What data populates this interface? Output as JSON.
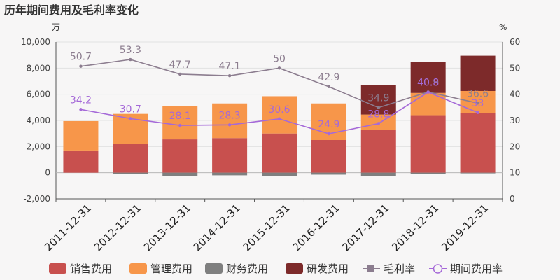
{
  "chart_data": {
    "type": "bar",
    "title": "历年期间费用及毛利率变化",
    "left_unit": "万",
    "right_unit": "%",
    "categories": [
      "2011-12-31",
      "2012-12-31",
      "2013-12-31",
      "2014-12-31",
      "2015-12-31",
      "2016-12-31",
      "2017-12-31",
      "2018-12-31",
      "2019-12-31"
    ],
    "ylim_left": [
      -2000,
      10000
    ],
    "yticks_left": [
      -2000,
      0,
      2000,
      4000,
      6000,
      8000,
      10000
    ],
    "ytick_labels_left": [
      "-2,000",
      "0",
      "2,000",
      "4,000",
      "6,000",
      "8,000",
      "10,000"
    ],
    "ylim_right": [
      0,
      60
    ],
    "yticks_right": [
      0,
      10,
      20,
      30,
      40,
      50,
      60
    ],
    "stacked_series": [
      {
        "name": "销售费用",
        "color": "#c8504e",
        "values": [
          1700,
          2200,
          2550,
          2650,
          3000,
          2500,
          3250,
          4400,
          4550
        ]
      },
      {
        "name": "管理费用",
        "color": "#f7964a",
        "values": [
          2250,
          2300,
          2550,
          2650,
          2850,
          2800,
          1200,
          1700,
          1700
        ]
      },
      {
        "name": "财务费用",
        "color": "#7f7f7f",
        "values": [
          0,
          -100,
          -250,
          -200,
          -250,
          -150,
          -250,
          -100,
          -50
        ]
      },
      {
        "name": "研发费用",
        "color": "#7d2a2a",
        "values": [
          0,
          0,
          0,
          0,
          0,
          0,
          2250,
          2400,
          2700
        ]
      }
    ],
    "line_series": [
      {
        "name": "毛利率",
        "color": "#8c7d8f",
        "axis": "right",
        "values": [
          50.7,
          53.3,
          47.7,
          47.1,
          50,
          42.9,
          34.9,
          40.9,
          36.6
        ],
        "labels": [
          "50.7",
          "53.3",
          "47.7",
          "47.1",
          "50",
          "42.9",
          "34.9",
          "40.9",
          "36.6"
        ]
      },
      {
        "name": "期间费用率",
        "color": "#a569d8",
        "axis": "right",
        "values": [
          34.2,
          30.7,
          28.1,
          28.3,
          30.6,
          24.9,
          28.8,
          40.8,
          33
        ],
        "labels": [
          "34.2",
          "30.7",
          "28.1",
          "28.3",
          "30.6",
          "24.9",
          "28.8",
          "40.8",
          "33"
        ]
      }
    ],
    "legend": [
      "销售费用",
      "管理费用",
      "财务费用",
      "研发费用",
      "毛利率",
      "期间费用率"
    ],
    "legend_position": "bottom",
    "grid": true
  }
}
